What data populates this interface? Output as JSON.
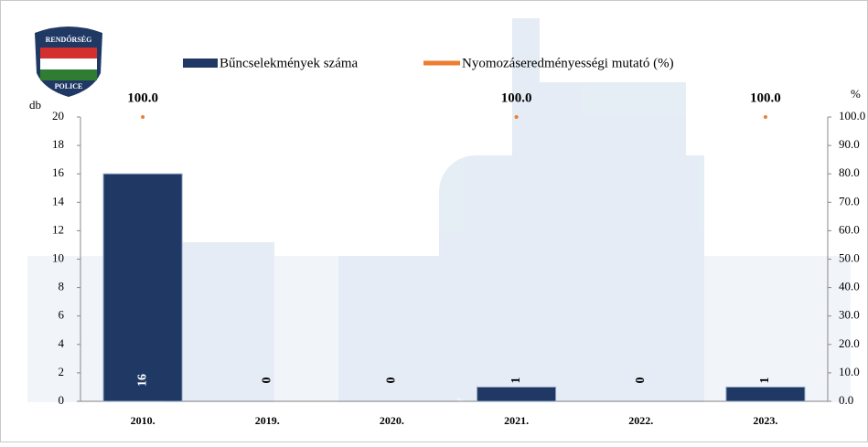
{
  "logo": {
    "top": "RENDŐRSÉG",
    "bottom": "POLICE"
  },
  "chart_data": {
    "type": "bar",
    "categories": [
      "2010.",
      "2019.",
      "2020.",
      "2021.",
      "2022.",
      "2023."
    ],
    "y_label": "db",
    "y2_label": "%",
    "series": [
      {
        "name": "Bűncselekmények száma",
        "color": "#1f3864",
        "values": [
          16,
          0,
          0,
          1,
          0,
          1
        ]
      },
      {
        "name": "Nyomozáseredményességi mutató (%)",
        "color": "#ed7d31",
        "axis": "y2",
        "values": [
          100,
          null,
          null,
          100,
          null,
          100
        ],
        "value_labels": [
          "100.0",
          null,
          null,
          "100.0",
          null,
          "100.0"
        ]
      }
    ],
    "ylim": [
      0,
      20
    ],
    "yticks": [
      0,
      2,
      4,
      6,
      8,
      10,
      12,
      14,
      16,
      18,
      20
    ],
    "y2lim": [
      0,
      100
    ],
    "y2ticks": [
      {
        "value": 0,
        "label": "0.0"
      },
      {
        "value": 10,
        "label": "10.0"
      },
      {
        "value": 20,
        "label": "20.0"
      },
      {
        "value": 30,
        "label": "30.0"
      },
      {
        "value": 40,
        "label": "40.0"
      },
      {
        "value": 50,
        "label": "50.0"
      },
      {
        "value": 60,
        "label": "60.0"
      },
      {
        "value": 70,
        "label": "70.0"
      },
      {
        "value": 80,
        "label": "80.0"
      },
      {
        "value": 90,
        "label": "90.0"
      },
      {
        "value": 100,
        "label": "100.0"
      }
    ],
    "grid": false,
    "legend": "top"
  }
}
